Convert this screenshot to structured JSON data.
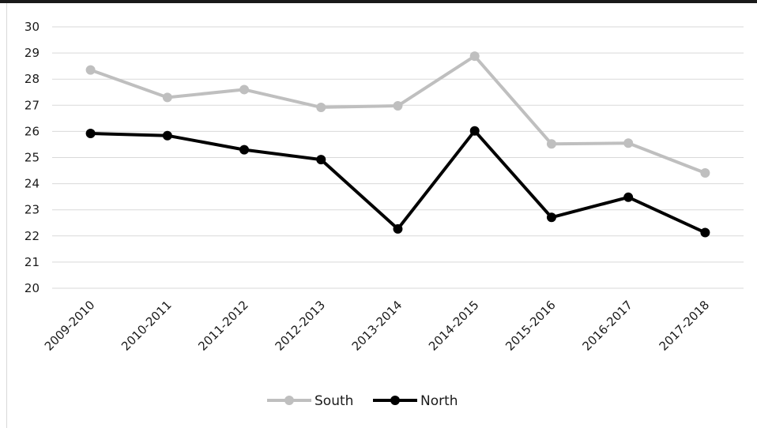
{
  "chart_data": {
    "type": "line",
    "title": "",
    "xlabel": "",
    "ylabel": "",
    "categories": [
      "2009-2010",
      "2010-2011",
      "2011-2012",
      "2012-2013",
      "2013-2014",
      "2014-2015",
      "2015-2016",
      "2016-2017",
      "2017-2018"
    ],
    "ylim": [
      20,
      30
    ],
    "yticks": [
      20,
      21,
      22,
      23,
      24,
      25,
      26,
      27,
      28,
      29,
      30
    ],
    "grid": true,
    "legend_position": "bottom",
    "series": [
      {
        "name": "South",
        "color": "#bfbfbf",
        "values": [
          28.35,
          27.3,
          27.6,
          26.92,
          26.98,
          28.88,
          25.52,
          25.55,
          24.41
        ]
      },
      {
        "name": "North",
        "color": "#000000",
        "values": [
          25.92,
          25.84,
          25.3,
          24.92,
          22.27,
          26.02,
          22.71,
          23.48,
          22.13
        ]
      }
    ]
  }
}
